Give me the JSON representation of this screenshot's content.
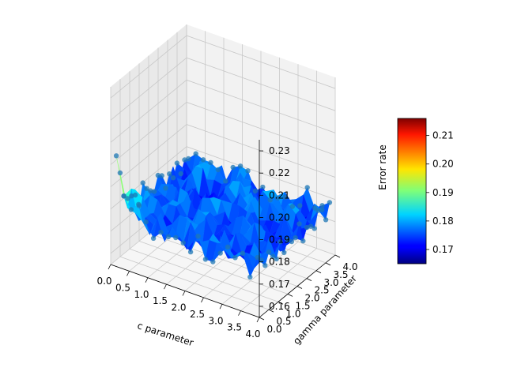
{
  "chart_data": {
    "type": "surface3d",
    "title": "",
    "xlabel": "c parameter",
    "ylabel": "gamma parameter",
    "zlabel": "Error rate",
    "x_ticks": [
      "0.0",
      "0.5",
      "1.0",
      "1.5",
      "2.0",
      "2.5",
      "3.0",
      "3.5",
      "4.0"
    ],
    "y_ticks": [
      "0.0",
      "0.5",
      "1.0",
      "1.5",
      "2.0",
      "2.5",
      "3.0",
      "3.5",
      "4.0"
    ],
    "z_ticks": [
      "0.16",
      "0.17",
      "0.18",
      "0.19",
      "0.20",
      "0.21",
      "0.22",
      "0.23"
    ],
    "xlim": [
      0,
      4
    ],
    "ylim": [
      0,
      4
    ],
    "zlim": [
      0.155,
      0.235
    ],
    "colorbar": {
      "colormap": "jet",
      "range": [
        0.165,
        0.216
      ],
      "ticks": [
        "0.17",
        "0.18",
        "0.19",
        "0.20",
        "0.21"
      ],
      "placement": "right"
    },
    "grid": true,
    "scatter_overlay": true,
    "surface": {
      "x_grid": [
        0.1,
        0.3,
        0.5,
        0.7,
        0.9,
        1.1,
        1.3,
        1.5,
        1.7,
        1.9,
        2.1,
        2.3,
        2.5,
        2.7,
        2.9,
        3.1,
        3.3,
        3.5,
        3.7,
        3.9
      ],
      "y_grid": [
        0.1,
        0.3,
        0.5,
        0.7,
        0.9,
        1.1,
        1.3,
        1.5,
        1.7,
        1.9,
        2.1,
        2.3,
        2.5,
        2.7,
        2.9,
        3.1,
        3.3,
        3.5,
        3.7,
        3.9
      ],
      "z_peak": 0.224,
      "z_base": 0.176,
      "z_noise": 0.006
    }
  }
}
